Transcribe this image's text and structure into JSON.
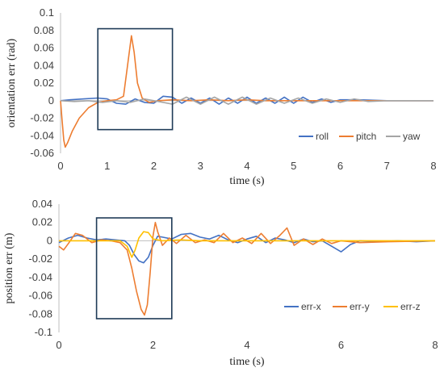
{
  "chart_data": [
    {
      "type": "line",
      "xlabel": "time (s)",
      "ylabel": "orientation err (rad)",
      "xlim": [
        0,
        8
      ],
      "ylim": [
        -0.06,
        0.1
      ],
      "x_ticks": [
        "0",
        "1",
        "2",
        "3",
        "4",
        "5",
        "6",
        "7",
        "8"
      ],
      "y_ticks": [
        "0.1",
        "0.08",
        "0.06",
        "0.04",
        "0.02",
        "0",
        "-0.02",
        "-0.04",
        "-0.06"
      ],
      "grid": false,
      "legend_position": "bottom-right",
      "highlight_box": {
        "x": [
          0.8,
          2.4
        ],
        "y": [
          -0.033,
          0.082
        ]
      },
      "series": [
        {
          "name": "roll",
          "color": "#4472C4",
          "points": [
            [
              0,
              0
            ],
            [
              0.2,
              0.001
            ],
            [
              0.5,
              0.002
            ],
            [
              0.8,
              0.003
            ],
            [
              1.0,
              0.002
            ],
            [
              1.2,
              -0.003
            ],
            [
              1.4,
              -0.004
            ],
            [
              1.6,
              0.002
            ],
            [
              1.8,
              -0.002
            ],
            [
              2.0,
              -0.003
            ],
            [
              2.2,
              0.005
            ],
            [
              2.4,
              0.004
            ],
            [
              2.6,
              -0.003
            ],
            [
              2.8,
              0.003
            ],
            [
              3.0,
              -0.003
            ],
            [
              3.2,
              0.003
            ],
            [
              3.4,
              -0.004
            ],
            [
              3.6,
              0.003
            ],
            [
              3.8,
              -0.003
            ],
            [
              4.0,
              0.004
            ],
            [
              4.2,
              -0.003
            ],
            [
              4.4,
              0.003
            ],
            [
              4.6,
              -0.003
            ],
            [
              4.8,
              0.004
            ],
            [
              5.0,
              -0.003
            ],
            [
              5.2,
              0.004
            ],
            [
              5.4,
              -0.002
            ],
            [
              5.6,
              0.002
            ],
            [
              5.8,
              -0.002
            ],
            [
              6.0,
              0.001
            ],
            [
              6.4,
              0.001
            ],
            [
              7.0,
              0.0
            ],
            [
              8.0,
              0.0
            ]
          ]
        },
        {
          "name": "pitch",
          "color": "#ED7D31",
          "points": [
            [
              0,
              0
            ],
            [
              0.03,
              -0.02
            ],
            [
              0.07,
              -0.045
            ],
            [
              0.1,
              -0.053
            ],
            [
              0.15,
              -0.048
            ],
            [
              0.25,
              -0.035
            ],
            [
              0.4,
              -0.02
            ],
            [
              0.6,
              -0.008
            ],
            [
              0.8,
              -0.002
            ],
            [
              1.0,
              0.0
            ],
            [
              1.2,
              0.001
            ],
            [
              1.35,
              0.005
            ],
            [
              1.45,
              0.045
            ],
            [
              1.52,
              0.074
            ],
            [
              1.58,
              0.055
            ],
            [
              1.65,
              0.02
            ],
            [
              1.75,
              0.003
            ],
            [
              1.9,
              -0.002
            ],
            [
              2.1,
              0.0
            ],
            [
              2.4,
              0.001
            ],
            [
              2.8,
              0.0
            ],
            [
              3.2,
              0.001
            ],
            [
              3.6,
              0.0
            ],
            [
              4.0,
              0.001
            ],
            [
              4.4,
              0.0
            ],
            [
              4.8,
              0.0
            ],
            [
              5.2,
              0.0
            ],
            [
              5.6,
              0.0
            ],
            [
              6.0,
              0.0
            ],
            [
              7.0,
              0.0
            ],
            [
              8.0,
              0.0
            ]
          ]
        },
        {
          "name": "yaw",
          "color": "#A5A5A5",
          "points": [
            [
              0,
              0
            ],
            [
              0.3,
              -0.001
            ],
            [
              0.6,
              0.0
            ],
            [
              0.9,
              -0.002
            ],
            [
              1.2,
              0.0
            ],
            [
              1.5,
              -0.002
            ],
            [
              1.8,
              0.002
            ],
            [
              2.1,
              -0.001
            ],
            [
              2.4,
              -0.004
            ],
            [
              2.7,
              0.004
            ],
            [
              3.0,
              -0.004
            ],
            [
              3.3,
              0.004
            ],
            [
              3.6,
              -0.004
            ],
            [
              3.9,
              0.004
            ],
            [
              4.2,
              -0.004
            ],
            [
              4.5,
              0.003
            ],
            [
              4.8,
              -0.003
            ],
            [
              5.1,
              0.003
            ],
            [
              5.4,
              -0.003
            ],
            [
              5.7,
              0.002
            ],
            [
              6.0,
              -0.002
            ],
            [
              6.3,
              0.002
            ],
            [
              6.6,
              -0.001
            ],
            [
              7.0,
              0.0
            ],
            [
              8.0,
              0.0
            ]
          ]
        }
      ]
    },
    {
      "type": "line",
      "xlabel": "time (s)",
      "ylabel": "position err (m)",
      "xlim": [
        0,
        8
      ],
      "ylim": [
        -0.1,
        0.04
      ],
      "x_ticks": [
        "0",
        "2",
        "4",
        "6",
        "8"
      ],
      "y_ticks": [
        "0.04",
        "0.02",
        "0",
        "-0.02",
        "-0.04",
        "-0.06",
        "-0.08",
        "-0.1"
      ],
      "grid": false,
      "legend_position": "bottom-right",
      "highlight_box": {
        "x": [
          0.8,
          2.4
        ],
        "y": [
          -0.085,
          0.025
        ]
      },
      "series": [
        {
          "name": "err-x",
          "color": "#4472C4",
          "points": [
            [
              0,
              -0.002
            ],
            [
              0.2,
              0.003
            ],
            [
              0.4,
              0.006
            ],
            [
              0.6,
              0.003
            ],
            [
              0.8,
              0.001
            ],
            [
              1.0,
              0.002
            ],
            [
              1.2,
              0.001
            ],
            [
              1.4,
              0.0
            ],
            [
              1.5,
              -0.005
            ],
            [
              1.6,
              -0.015
            ],
            [
              1.7,
              -0.022
            ],
            [
              1.8,
              -0.024
            ],
            [
              1.9,
              -0.018
            ],
            [
              2.0,
              -0.005
            ],
            [
              2.1,
              0.005
            ],
            [
              2.2,
              0.004
            ],
            [
              2.4,
              0.002
            ],
            [
              2.6,
              0.007
            ],
            [
              2.8,
              0.008
            ],
            [
              3.0,
              0.004
            ],
            [
              3.2,
              0.002
            ],
            [
              3.4,
              0.006
            ],
            [
              3.6,
              0.001
            ],
            [
              3.8,
              -0.002
            ],
            [
              4.0,
              0.002
            ],
            [
              4.2,
              0.005
            ],
            [
              4.4,
              -0.002
            ],
            [
              4.6,
              0.003
            ],
            [
              4.8,
              0.001
            ],
            [
              5.0,
              -0.002
            ],
            [
              5.2,
              0.002
            ],
            [
              5.4,
              -0.001
            ],
            [
              5.6,
              0.0
            ],
            [
              5.8,
              -0.006
            ],
            [
              6.0,
              -0.012
            ],
            [
              6.2,
              -0.004
            ],
            [
              6.4,
              0.0
            ],
            [
              6.8,
              -0.001
            ],
            [
              7.2,
              0.0
            ],
            [
              7.6,
              -0.001
            ],
            [
              8.0,
              0.0
            ]
          ]
        },
        {
          "name": "err-y",
          "color": "#ED7D31",
          "points": [
            [
              0,
              -0.006
            ],
            [
              0.1,
              -0.01
            ],
            [
              0.2,
              -0.003
            ],
            [
              0.35,
              0.008
            ],
            [
              0.5,
              0.006
            ],
            [
              0.7,
              -0.002
            ],
            [
              0.9,
              0.001
            ],
            [
              1.1,
              0.0
            ],
            [
              1.3,
              -0.002
            ],
            [
              1.45,
              -0.01
            ],
            [
              1.55,
              -0.03
            ],
            [
              1.65,
              -0.055
            ],
            [
              1.75,
              -0.075
            ],
            [
              1.82,
              -0.081
            ],
            [
              1.88,
              -0.07
            ],
            [
              1.94,
              -0.035
            ],
            [
              2.0,
              0.005
            ],
            [
              2.05,
              0.02
            ],
            [
              2.1,
              0.01
            ],
            [
              2.2,
              -0.005
            ],
            [
              2.35,
              0.003
            ],
            [
              2.5,
              -0.003
            ],
            [
              2.7,
              0.006
            ],
            [
              2.9,
              -0.002
            ],
            [
              3.1,
              0.001
            ],
            [
              3.3,
              -0.002
            ],
            [
              3.5,
              0.008
            ],
            [
              3.7,
              -0.002
            ],
            [
              3.9,
              0.003
            ],
            [
              4.1,
              -0.003
            ],
            [
              4.3,
              0.008
            ],
            [
              4.5,
              -0.003
            ],
            [
              4.7,
              0.006
            ],
            [
              4.85,
              0.014
            ],
            [
              5.0,
              -0.005
            ],
            [
              5.2,
              0.002
            ],
            [
              5.4,
              -0.004
            ],
            [
              5.6,
              0.002
            ],
            [
              5.8,
              -0.003
            ],
            [
              6.0,
              0.0
            ],
            [
              6.4,
              -0.002
            ],
            [
              7.0,
              -0.001
            ],
            [
              8.0,
              0.0
            ]
          ]
        },
        {
          "name": "err-z",
          "color": "#FFC000",
          "points": [
            [
              0,
              0.0
            ],
            [
              1.0,
              0.0
            ],
            [
              1.3,
              0.0
            ],
            [
              1.45,
              -0.006
            ],
            [
              1.55,
              -0.018
            ],
            [
              1.62,
              -0.01
            ],
            [
              1.7,
              0.003
            ],
            [
              1.8,
              0.01
            ],
            [
              1.9,
              0.009
            ],
            [
              2.0,
              0.002
            ],
            [
              2.2,
              0.0
            ],
            [
              2.6,
              0.001
            ],
            [
              3.0,
              0.0
            ],
            [
              4.0,
              0.0
            ],
            [
              5.0,
              0.0
            ],
            [
              6.0,
              0.0
            ],
            [
              7.0,
              0.0
            ],
            [
              8.0,
              0.0
            ]
          ]
        }
      ]
    }
  ]
}
